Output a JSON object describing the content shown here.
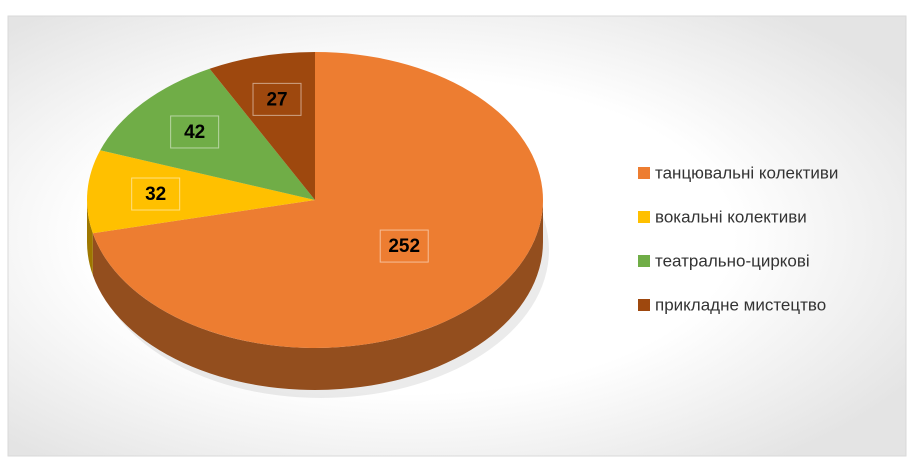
{
  "chart_data": {
    "type": "pie3d",
    "categories": [
      "танцювальні колективи",
      "вокальні колективи",
      "театрально-циркові",
      "прикладне мистецтво"
    ],
    "values": [
      252,
      32,
      42,
      27
    ],
    "colors": [
      "#ED7D31",
      "#FFC000",
      "#70AD47",
      "#9E480E"
    ],
    "legend": "right"
  }
}
